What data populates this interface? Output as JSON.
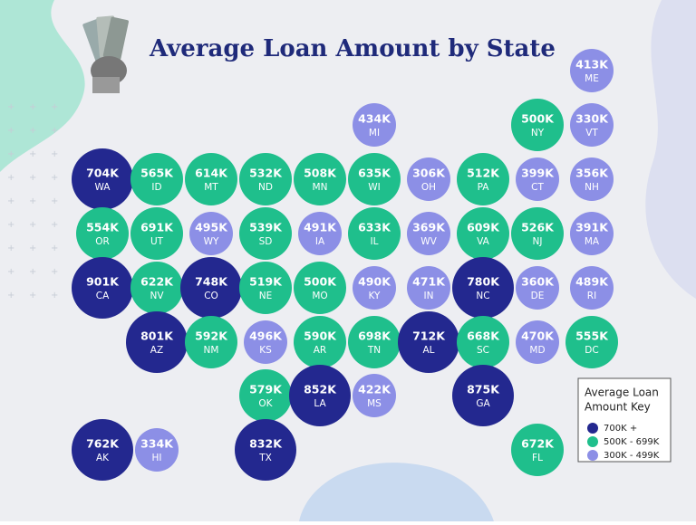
{
  "title": "Average Loan Amount by State",
  "legend": {
    "title": [
      "Average Loan",
      "Amount Key"
    ],
    "items": [
      {
        "label": "700K +",
        "color": "#23288f"
      },
      {
        "label": "500K - 699K",
        "color": "#1fbf8c"
      },
      {
        "label": "300K - 499K",
        "color": "#8c8fe6"
      }
    ]
  },
  "states": [
    {
      "value": "413K",
      "abbr": "ME",
      "tier": 2
    },
    {
      "value": "434K",
      "abbr": "MI",
      "tier": 2
    },
    {
      "value": "500K",
      "abbr": "NY",
      "tier": 1
    },
    {
      "value": "330K",
      "abbr": "VT",
      "tier": 2
    },
    {
      "value": "704K",
      "abbr": "WA",
      "tier": 0
    },
    {
      "value": "565K",
      "abbr": "ID",
      "tier": 1
    },
    {
      "value": "614K",
      "abbr": "MT",
      "tier": 1
    },
    {
      "value": "532K",
      "abbr": "ND",
      "tier": 1
    },
    {
      "value": "508K",
      "abbr": "MN",
      "tier": 1
    },
    {
      "value": "635K",
      "abbr": "WI",
      "tier": 1
    },
    {
      "value": "306K",
      "abbr": "OH",
      "tier": 2
    },
    {
      "value": "512K",
      "abbr": "PA",
      "tier": 1
    },
    {
      "value": "399K",
      "abbr": "CT",
      "tier": 2
    },
    {
      "value": "356K",
      "abbr": "NH",
      "tier": 2
    },
    {
      "value": "554K",
      "abbr": "OR",
      "tier": 1
    },
    {
      "value": "691K",
      "abbr": "UT",
      "tier": 1
    },
    {
      "value": "495K",
      "abbr": "WY",
      "tier": 2
    },
    {
      "value": "539K",
      "abbr": "SD",
      "tier": 1
    },
    {
      "value": "491K",
      "abbr": "IA",
      "tier": 2
    },
    {
      "value": "633K",
      "abbr": "IL",
      "tier": 1
    },
    {
      "value": "369K",
      "abbr": "WV",
      "tier": 2
    },
    {
      "value": "609K",
      "abbr": "VA",
      "tier": 1
    },
    {
      "value": "526K",
      "abbr": "NJ",
      "tier": 1
    },
    {
      "value": "391K",
      "abbr": "MA",
      "tier": 2
    },
    {
      "value": "901K",
      "abbr": "CA",
      "tier": 0
    },
    {
      "value": "622K",
      "abbr": "NV",
      "tier": 1
    },
    {
      "value": "748K",
      "abbr": "CO",
      "tier": 0
    },
    {
      "value": "519K",
      "abbr": "NE",
      "tier": 1
    },
    {
      "value": "500K",
      "abbr": "MO",
      "tier": 1
    },
    {
      "value": "490K",
      "abbr": "KY",
      "tier": 2
    },
    {
      "value": "471K",
      "abbr": "IN",
      "tier": 2
    },
    {
      "value": "780K",
      "abbr": "NC",
      "tier": 0
    },
    {
      "value": "360K",
      "abbr": "DE",
      "tier": 2
    },
    {
      "value": "489K",
      "abbr": "RI",
      "tier": 2
    },
    {
      "value": "801K",
      "abbr": "AZ",
      "tier": 0
    },
    {
      "value": "592K",
      "abbr": "NM",
      "tier": 1
    },
    {
      "value": "496K",
      "abbr": "KS",
      "tier": 2
    },
    {
      "value": "590K",
      "abbr": "AR",
      "tier": 1
    },
    {
      "value": "698K",
      "abbr": "TN",
      "tier": 1
    },
    {
      "value": "712K",
      "abbr": "AL",
      "tier": 0
    },
    {
      "value": "668K",
      "abbr": "SC",
      "tier": 1
    },
    {
      "value": "470K",
      "abbr": "MD",
      "tier": 2
    },
    {
      "value": "555K",
      "abbr": "DC",
      "tier": 1
    },
    {
      "value": "579K",
      "abbr": "OK",
      "tier": 1
    },
    {
      "value": "852K",
      "abbr": "LA",
      "tier": 0
    },
    {
      "value": "422K",
      "abbr": "MS",
      "tier": 2
    },
    {
      "value": "875K",
      "abbr": "GA",
      "tier": 0
    },
    {
      "value": "762K",
      "abbr": "AK",
      "tier": 0
    },
    {
      "value": "334K",
      "abbr": "HI",
      "tier": 2
    },
    {
      "value": "832K",
      "abbr": "TX",
      "tier": 0
    },
    {
      "value": "672K",
      "abbr": "FL",
      "tier": 1
    }
  ]
}
